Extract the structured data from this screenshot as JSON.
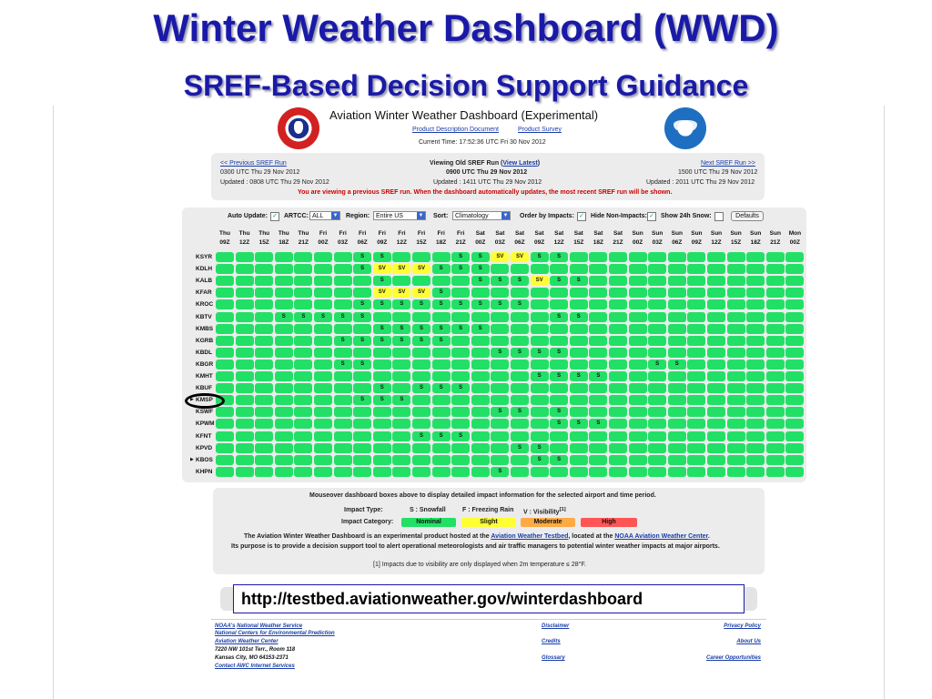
{
  "slide": {
    "title": "Winter Weather Dashboard (WWD)",
    "subtitle": "SREF-Based Decision Support Guidance"
  },
  "app": {
    "title": "Aviation Winter Weather Dashboard (Experimental)",
    "links": {
      "doc": "Product Description Document",
      "survey": "Product Survey"
    },
    "current_time": "Current Time: 17:52:36 UTC Fri 30 Nov 2012"
  },
  "run_nav": {
    "prev_label": "<< Previous SREF Run",
    "prev_run": "0300 UTC Thu 29 Nov 2012",
    "prev_updated": "Updated : 0808 UTC Thu 29 Nov 2012",
    "viewing_prefix": "Viewing Old SREF Run  (",
    "view_latest": "View Latest",
    "viewing_suffix": ")",
    "viewing_run": "0900 UTC Thu 29 Nov 2012",
    "viewing_updated": "Updated : 1411 UTC Thu 29 Nov 2012",
    "next_label": "Next SREF Run >>",
    "next_run": "1500 UTC Thu 29 Nov 2012",
    "next_updated": "Updated : 2011 UTC Thu 29 Nov 2012",
    "notice": "You are viewing a previous SREF run. When the dashboard automatically updates, the most recent SREF run will be shown."
  },
  "controls": {
    "auto_update_label": "Auto Update:",
    "artcc_label": "ARTCC:",
    "artcc_value": "ALL",
    "region_label": "Region:",
    "region_value": "Entire US",
    "sort_label": "Sort:",
    "sort_value": "Climatology",
    "order_label": "Order by Impacts:",
    "hide_label": "Hide Non-Impacts:",
    "snow_label": "Show 24h Snow:",
    "defaults_label": "Defaults",
    "auto_update_checked": true,
    "order_checked": true,
    "hide_checked": true,
    "snow_checked": false
  },
  "grid": {
    "columns": [
      [
        "Thu",
        "09Z"
      ],
      [
        "Thu",
        "12Z"
      ],
      [
        "Thu",
        "15Z"
      ],
      [
        "Thu",
        "18Z"
      ],
      [
        "Thu",
        "21Z"
      ],
      [
        "Fri",
        "00Z"
      ],
      [
        "Fri",
        "03Z"
      ],
      [
        "Fri",
        "06Z"
      ],
      [
        "Fri",
        "09Z"
      ],
      [
        "Fri",
        "12Z"
      ],
      [
        "Fri",
        "15Z"
      ],
      [
        "Fri",
        "18Z"
      ],
      [
        "Fri",
        "21Z"
      ],
      [
        "Sat",
        "00Z"
      ],
      [
        "Sat",
        "03Z"
      ],
      [
        "Sat",
        "06Z"
      ],
      [
        "Sat",
        "09Z"
      ],
      [
        "Sat",
        "12Z"
      ],
      [
        "Sat",
        "15Z"
      ],
      [
        "Sat",
        "18Z"
      ],
      [
        "Sat",
        "21Z"
      ],
      [
        "Sun",
        "00Z"
      ],
      [
        "Sun",
        "03Z"
      ],
      [
        "Sun",
        "06Z"
      ],
      [
        "Sun",
        "09Z"
      ],
      [
        "Sun",
        "12Z"
      ],
      [
        "Sun",
        "15Z"
      ],
      [
        "Sun",
        "18Z"
      ],
      [
        "Sun",
        "21Z"
      ],
      [
        "Mon",
        "00Z"
      ]
    ],
    "rows": [
      {
        "id": "KSYR",
        "cells": {
          "7": "S",
          "8": "S",
          "12": "S",
          "13": "S",
          "14": "SV",
          "15": "SV",
          "16": "S",
          "17": "S"
        }
      },
      {
        "id": "KDLH",
        "cells": {
          "7": "S",
          "8": "SV",
          "9": "SV",
          "10": "SV",
          "11": "S",
          "12": "S",
          "13": "S"
        }
      },
      {
        "id": "KALB",
        "cells": {
          "8": "S",
          "13": "S",
          "14": "S",
          "15": "S",
          "16": "SV",
          "17": "S",
          "18": "S"
        }
      },
      {
        "id": "KFAR",
        "cells": {
          "8": "SV",
          "9": "SV",
          "10": "SV",
          "11": "S"
        }
      },
      {
        "id": "KROC",
        "cells": {
          "7": "S",
          "8": "S",
          "9": "S",
          "10": "S",
          "11": "S",
          "12": "S",
          "13": "S",
          "14": "S",
          "15": "S"
        }
      },
      {
        "id": "KBTV",
        "cells": {
          "3": "S",
          "4": "S",
          "5": "S",
          "6": "S",
          "7": "S",
          "17": "S",
          "18": "S"
        }
      },
      {
        "id": "KMBS",
        "cells": {
          "8": "S",
          "9": "S",
          "10": "S",
          "11": "S",
          "12": "S",
          "13": "S"
        }
      },
      {
        "id": "KGRB",
        "cells": {
          "6": "S",
          "7": "S",
          "8": "S",
          "9": "S",
          "10": "S",
          "11": "S"
        }
      },
      {
        "id": "KBDL",
        "cells": {
          "14": "S",
          "15": "S",
          "16": "S",
          "17": "S"
        }
      },
      {
        "id": "KBGR",
        "cells": {
          "6": "S",
          "7": "S",
          "22": "S",
          "23": "S"
        }
      },
      {
        "id": "KMHT",
        "cells": {
          "16": "S",
          "17": "S",
          "18": "S",
          "19": "S"
        }
      },
      {
        "id": "KBUF",
        "cells": {
          "8": "S",
          "10": "S",
          "11": "S",
          "12": "S"
        }
      },
      {
        "id": "KMSP",
        "marker": "▶",
        "cells": {
          "7": "S",
          "8": "S",
          "9": "S"
        }
      },
      {
        "id": "KSWF",
        "cells": {
          "14": "S",
          "15": "S",
          "17": "S"
        }
      },
      {
        "id": "KPWM",
        "cells": {
          "17": "S",
          "18": "S",
          "19": "S"
        }
      },
      {
        "id": "KFNT",
        "cells": {
          "10": "S",
          "11": "S",
          "12": "S"
        }
      },
      {
        "id": "KPVD",
        "cells": {
          "15": "S",
          "16": "S"
        }
      },
      {
        "id": "KBOS",
        "marker": "▶",
        "cells": {
          "16": "S",
          "17": "S"
        }
      },
      {
        "id": "KHPN",
        "cells": {
          "14": "S"
        }
      }
    ]
  },
  "legend": {
    "hint": "Mouseover dashboard boxes above to display detailed impact information for the selected airport and time period.",
    "type_label": "Impact Type:",
    "type_s": "S : Snowfall",
    "type_f": "F : Freezing Rain",
    "type_v": "V : Visibility",
    "type_v_note": "[1]",
    "cat_label": "Impact Category:",
    "categories": [
      {
        "label": "Nominal",
        "color": "#22e066"
      },
      {
        "label": "Slight",
        "color": "#ffff33"
      },
      {
        "label": "Moderate",
        "color": "#ffaa44"
      },
      {
        "label": "High",
        "color": "#ff5555"
      }
    ],
    "line1_a": "The Aviation Winter Weather Dashboard is an experimental product hosted at the ",
    "line1_link1": "Aviation Weather Testbed",
    "line1_b": ", located at the ",
    "line1_link2": "NOAA Aviation Weather Center",
    "line1_c": ".",
    "line2": "Its purpose is to provide a decision support tool to alert operational meteorologists and air traffic managers to potential winter weather impacts at major airports.",
    "footnote": "[1] Impacts due to visibility are only displayed when 2m temperature ≤ 28°F."
  },
  "url_banner": "http://testbed.aviationweather.gov/winterdashboard",
  "footer": {
    "noaa": "NOAA's",
    "nws": "National Weather Service",
    "ncep": "National Centers for Environmental Prediction",
    "awc": "Aviation Weather Center",
    "addr1": "7220 NW 101st Terr., Room 118",
    "addr2": "Kansas City, MO 64153-2371",
    "contact": "Contact AWC Internet Services",
    "disclaimer": "Disclaimer",
    "credits": "Credits",
    "glossary": "Glossary",
    "privacy": "Privacy Policy",
    "about": "About Us",
    "careers": "Career Opportunities"
  },
  "colors": {
    "nominal": "#22e066",
    "slight": "#ffff33",
    "title_blue": "#1a1aa8"
  }
}
